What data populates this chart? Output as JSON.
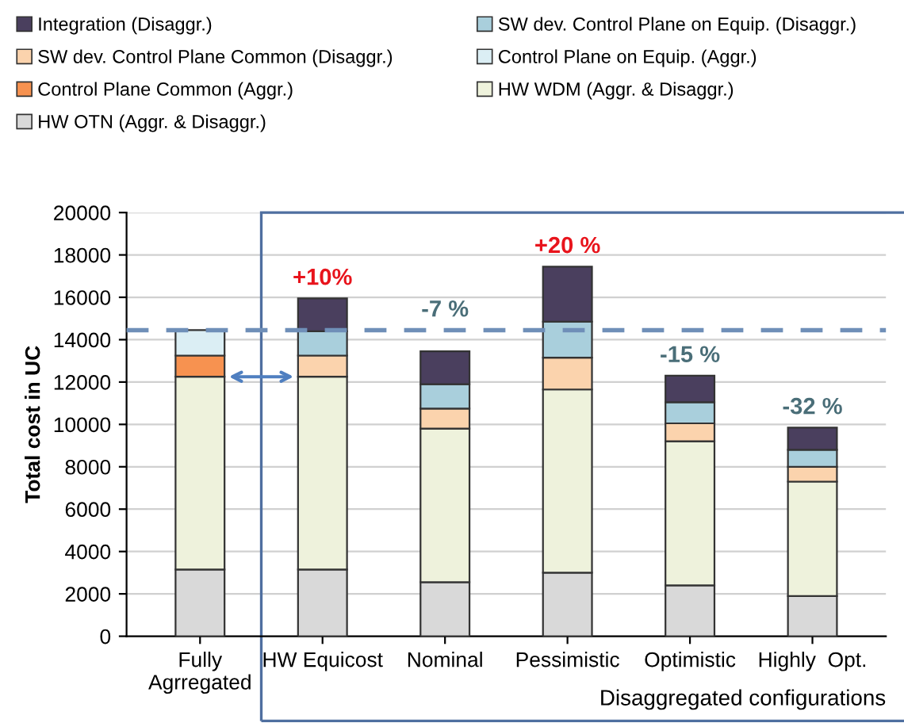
{
  "chart_data": {
    "type": "bar",
    "stacked": true,
    "xlabel": "Disaggregated configurations",
    "ylabel": "Total cost in UC",
    "categories": [
      "Fully\nAgrregated",
      "HW Equicost",
      "Nominal",
      "Pessimistic",
      "Optimistic",
      "Highly  Opt."
    ],
    "series": [
      {
        "name": "HW OTN (Aggr. & Disaggr.)",
        "color": "#d9d9d9",
        "values": [
          3150,
          3150,
          2550,
          3000,
          2400,
          1900
        ]
      },
      {
        "name": "HW WDM (Aggr. & Disaggr.)",
        "color": "#eef2dc",
        "values": [
          9100,
          9100,
          7250,
          8650,
          6800,
          5400
        ]
      },
      {
        "name": "Control Plane Common (Aggr.)",
        "color": "#f79250",
        "values": [
          1000,
          null,
          null,
          null,
          null,
          null
        ]
      },
      {
        "name": "Control Plane on Equip. (Aggr.)",
        "color": "#dbeef4",
        "values": [
          1200,
          null,
          null,
          null,
          null,
          null
        ]
      },
      {
        "name": "SW dev. Control Plane Common (Disaggr.)",
        "color": "#fbd3ad",
        "values": [
          null,
          1000,
          950,
          1500,
          850,
          700
        ]
      },
      {
        "name": "SW dev. Control Plane on Equip. (Disaggr.)",
        "color": "#a9cfdc",
        "values": [
          null,
          1150,
          1150,
          1700,
          1000,
          800
        ]
      },
      {
        "name": "Integration (Disaggr.)",
        "color": "#4a3f5e",
        "values": [
          null,
          1550,
          1550,
          2600,
          1250,
          1050
        ]
      }
    ],
    "ylim": [
      0,
      20000
    ],
    "yticks": [
      0,
      2000,
      4000,
      6000,
      8000,
      10000,
      12000,
      14000,
      16000,
      18000,
      20000
    ],
    "grid": "y",
    "legend": "top",
    "ref_lines": [
      {
        "axis": "y",
        "value": 14450,
        "color": "#6f8fb8",
        "line_style": "dashed"
      }
    ],
    "annotations": [
      {
        "text": "+10%",
        "x": "HW Equicost",
        "y": 15950
      },
      {
        "text": "-7 %",
        "x": "Nominal",
        "y": 14450
      },
      {
        "text": "+20 %",
        "x": "Pessimistic",
        "y": 17450
      },
      {
        "text": "-15 %",
        "x": "Optimistic",
        "y": 12300
      },
      {
        "text": "-32 %",
        "x": "Highly  Opt.",
        "y": 9850
      }
    ]
  }
}
